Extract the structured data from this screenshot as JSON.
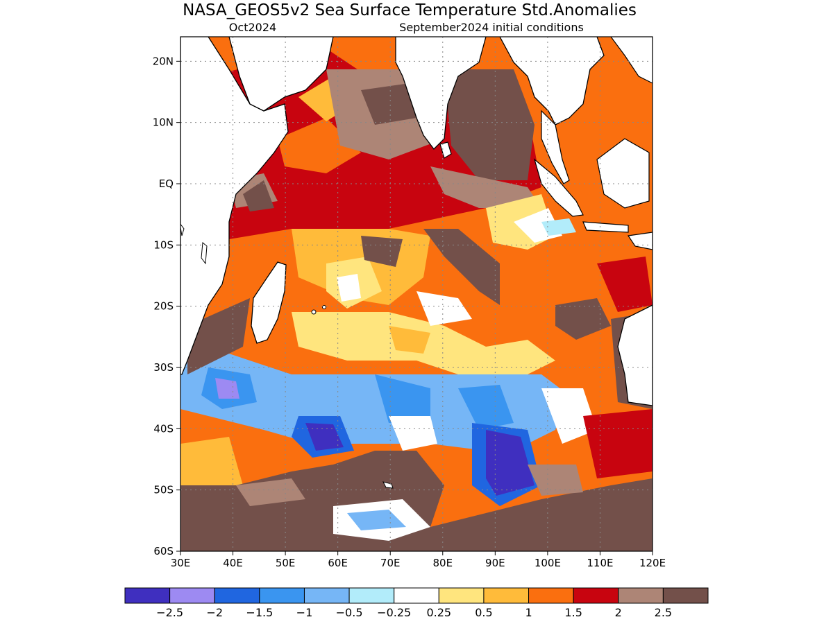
{
  "title": "NASA_GEOS5v2 Sea Surface Temperature Std.Anomalies",
  "subtitle_left": "Oct2024",
  "subtitle_right": "September2024 initial conditions",
  "lat_labels": [
    "20N",
    "10N",
    "EQ",
    "10S",
    "20S",
    "30S",
    "40S",
    "50S",
    "60S"
  ],
  "lon_labels": [
    "30E",
    "40E",
    "50E",
    "60E",
    "70E",
    "80E",
    "90E",
    "100E",
    "110E",
    "120E"
  ],
  "map_extent": {
    "lon_min": 30,
    "lon_max": 120,
    "lat_min": -60,
    "lat_max": 24
  },
  "colorbar": {
    "colors": [
      "#3f2fbf",
      "#9d8af2",
      "#2066e0",
      "#3a95f0",
      "#76b6f6",
      "#b2ecfa",
      "#ffffff",
      "#ffe57e",
      "#ffbb3a",
      "#fa6f0f",
      "#c8040f",
      "#ad8576",
      "#73504a"
    ],
    "labels": [
      "−2.5",
      "−2",
      "−1.5",
      "−1",
      "−0.5",
      "−0.25",
      "0.25",
      "0.5",
      "1",
      "1.5",
      "2",
      "2.5"
    ]
  }
}
